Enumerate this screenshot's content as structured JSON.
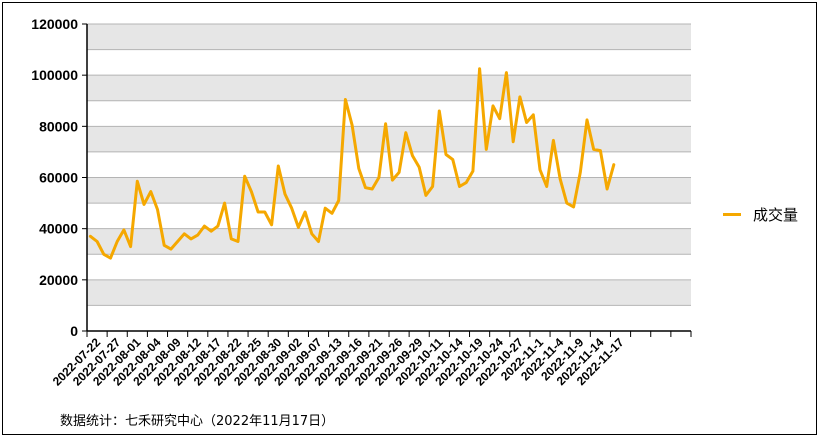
{
  "chart_data": {
    "type": "line",
    "title": "",
    "xlabel": "",
    "ylabel": "",
    "ylim": [
      0,
      120000
    ],
    "yticks": [
      0,
      20000,
      40000,
      60000,
      80000,
      100000,
      120000
    ],
    "ytick_labels": [
      "0",
      "20000",
      "40000",
      "60000",
      "80000",
      "100000",
      "120000"
    ],
    "grid": "horizontal, alternating gray bands",
    "legend_position": "right",
    "xtick_labels": [
      "2022-07-22",
      "2022-07-27",
      "2022-08-01",
      "2022-08-04",
      "2022-08-09",
      "2022-08-12",
      "2022-08-17",
      "2022-08-22",
      "2022-08-25",
      "2022-08-30",
      "2022-09-02",
      "2022-09-07",
      "2022-09-13",
      "2022-09-16",
      "2022-09-21",
      "2022-09-26",
      "2022-09-29",
      "2022-10-11",
      "2022-10-14",
      "2022-10-19",
      "2022-10-24",
      "2022-10-27",
      "2022-11-1",
      "2022-11-4",
      "2022-11-9",
      "2022-11-14",
      "2022-11-17"
    ],
    "series": [
      {
        "name": "成交量",
        "color": "#f5a800",
        "values": [
          37000,
          35000,
          30000,
          28500,
          35000,
          39500,
          33000,
          58500,
          49500,
          54500,
          47500,
          33500,
          32000,
          35000,
          38000,
          36000,
          37500,
          41000,
          39000,
          41000,
          50000,
          36000,
          35000,
          60500,
          54500,
          46500,
          46500,
          41500,
          64500,
          53500,
          48000,
          40500,
          46500,
          38000,
          35000,
          48000,
          46000,
          51000,
          90500,
          80500,
          63500,
          56000,
          55500,
          60000,
          81000,
          59000,
          62000,
          77500,
          68500,
          64000,
          53000,
          56500,
          86000,
          69000,
          67000,
          56500,
          58000,
          62500,
          102500,
          71000,
          88000,
          83000,
          101000,
          74000,
          91500,
          81500,
          84500,
          63000,
          56500,
          74500,
          59500,
          50000,
          48500,
          62000,
          82500,
          71000,
          70500,
          55500,
          65000
        ]
      }
    ]
  },
  "legend": {
    "label": "成交量"
  },
  "source": "数据统计：七禾研究中心（2022年11月17日）"
}
